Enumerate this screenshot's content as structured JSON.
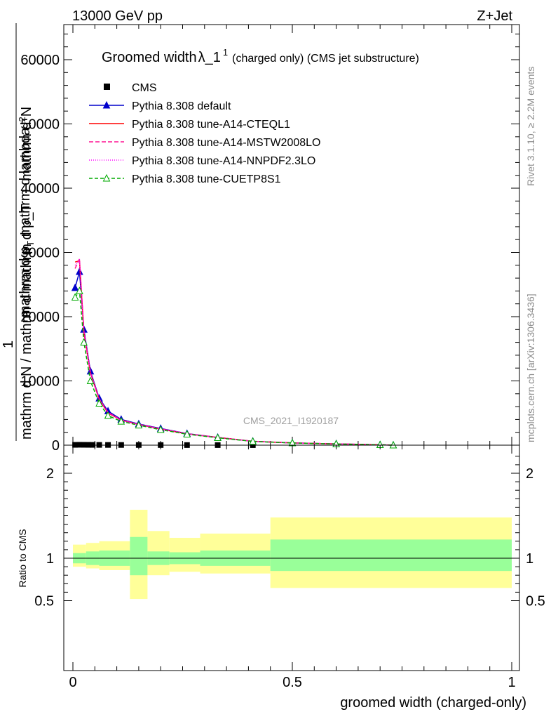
{
  "header": {
    "left": "13000 GeV pp",
    "right": "Z+Jet"
  },
  "side_labels": {
    "rivet": "Rivet 3.1.10, ≥ 2.2M events",
    "mcplots": "mcplots.cern.ch [arXiv:1306.3436]"
  },
  "watermark": "CMS_2021_I1920187",
  "chart_data": [
    {
      "type": "line",
      "title_main": "Groomed width",
      "title_lambda": "λ_1",
      "title_sup": "1",
      "title_rest": "(charged only) (CMS jet substructure)",
      "ylabel_top": "mathrm d",
      "ylabel_top_sup": "2",
      "ylabel_top_rest": "N",
      "ylabel_bottom": "mathrm d p",
      "ylabel_bottom_sub": "T",
      "ylabel_bottom_rest": " mathrm d lambda",
      "ylabel_one": "1",
      "ylabel_denominator": "mathrm d N / mathrm d mathrm d p_T",
      "xlim": [
        0,
        1
      ],
      "ylim": [
        0,
        65000
      ],
      "yticks": [
        0,
        10000,
        20000,
        30000,
        40000,
        50000,
        60000
      ],
      "ytick_labels": [
        "0",
        "10000",
        "20000",
        "30000",
        "40000",
        "50000",
        "60000"
      ],
      "cms": {
        "name": "CMS",
        "x": [
          0.005,
          0.015,
          0.025,
          0.035,
          0.045,
          0.06,
          0.08,
          0.11,
          0.15,
          0.2,
          0.26,
          0.33,
          0.41
        ],
        "y": [
          50,
          60,
          55,
          50,
          45,
          40,
          35,
          30,
          25,
          20,
          15,
          12,
          8
        ]
      },
      "series": [
        {
          "name": "Pythia 8.308 default",
          "color": "#0000cc",
          "dash": "",
          "marker": "triangle-filled",
          "x": [
            0.005,
            0.015,
            0.025,
            0.04,
            0.06,
            0.08,
            0.11,
            0.15,
            0.2,
            0.26,
            0.33,
            0.41,
            0.5,
            0.6,
            0.7,
            0.73
          ],
          "y": [
            24500,
            27000,
            18000,
            11500,
            7300,
            5300,
            4000,
            3300,
            2600,
            1800,
            1200,
            600,
            350,
            200,
            50,
            0
          ]
        },
        {
          "name": "Pythia 8.308 tune-A14-CTEQL1",
          "color": "#ff0000",
          "dash": "",
          "marker": "none",
          "x": [
            0.005,
            0.015,
            0.025,
            0.04,
            0.06,
            0.08,
            0.11,
            0.15,
            0.2,
            0.26,
            0.33,
            0.41,
            0.5,
            0.6,
            0.7,
            0.73
          ],
          "y": [
            28500,
            28700,
            17500,
            11200,
            7100,
            5000,
            3900,
            3200,
            2500,
            1750,
            1200,
            600,
            350,
            200,
            50,
            0
          ]
        },
        {
          "name": "Pythia 8.308 tune-A14-MSTW2008LO",
          "color": "#ff1493",
          "dash": "6,3",
          "marker": "none",
          "x": [
            0.005,
            0.015,
            0.025,
            0.04,
            0.06,
            0.08,
            0.11,
            0.15,
            0.2,
            0.26,
            0.33,
            0.41,
            0.5,
            0.6,
            0.7,
            0.73
          ],
          "y": [
            27500,
            29000,
            17800,
            11300,
            7200,
            5100,
            3900,
            3250,
            2550,
            1780,
            1200,
            600,
            350,
            200,
            50,
            0
          ]
        },
        {
          "name": "Pythia 8.308 tune-A14-NNPDF2.3LO",
          "color": "#ff00ff",
          "dash": "1,2",
          "marker": "none",
          "x": [
            0.005,
            0.015,
            0.025,
            0.04,
            0.06,
            0.08,
            0.11,
            0.15,
            0.2,
            0.26,
            0.33,
            0.41,
            0.5,
            0.6,
            0.7,
            0.73
          ],
          "y": [
            28000,
            28800,
            17600,
            11250,
            7150,
            5050,
            3900,
            3220,
            2520,
            1760,
            1200,
            600,
            350,
            200,
            50,
            0
          ]
        },
        {
          "name": "Pythia 8.308 tune-CUETP8S1",
          "color": "#00aa00",
          "dash": "5,3",
          "marker": "triangle-open",
          "x": [
            0.005,
            0.015,
            0.025,
            0.04,
            0.06,
            0.08,
            0.11,
            0.15,
            0.2,
            0.26,
            0.33,
            0.41,
            0.5,
            0.6,
            0.7,
            0.73
          ],
          "y": [
            23000,
            24000,
            16000,
            10000,
            6500,
            4600,
            3700,
            3100,
            2400,
            1700,
            1150,
            580,
            340,
            190,
            50,
            0
          ]
        }
      ]
    },
    {
      "type": "area",
      "ylabel": "Ratio to CMS",
      "xlabel": "groomed width (charged-only)",
      "xlim": [
        0,
        1
      ],
      "ylim": [
        0.4,
        2.3
      ],
      "xticks": [
        0,
        0.5,
        1
      ],
      "xtick_labels": [
        "0",
        "0.5",
        "1"
      ],
      "yticks": [
        0.5,
        1,
        2
      ],
      "ytick_labels": [
        "0.5",
        "1",
        "2"
      ],
      "band_edges": [
        0,
        0.03,
        0.06,
        0.13,
        0.17,
        0.22,
        0.29,
        0.45,
        1.0
      ],
      "inner_band": {
        "color": "#99ff99",
        "up": [
          1.06,
          1.08,
          1.09,
          1.25,
          1.08,
          1.07,
          1.09,
          1.22
        ],
        "down": [
          0.94,
          0.92,
          0.91,
          0.8,
          0.92,
          0.93,
          0.91,
          0.85
        ]
      },
      "outer_band": {
        "color": "#ffff99",
        "up": [
          1.16,
          1.18,
          1.2,
          1.57,
          1.32,
          1.24,
          1.29,
          1.48
        ],
        "down": [
          0.9,
          0.88,
          0.86,
          0.52,
          0.8,
          0.84,
          0.82,
          0.65
        ]
      }
    }
  ]
}
